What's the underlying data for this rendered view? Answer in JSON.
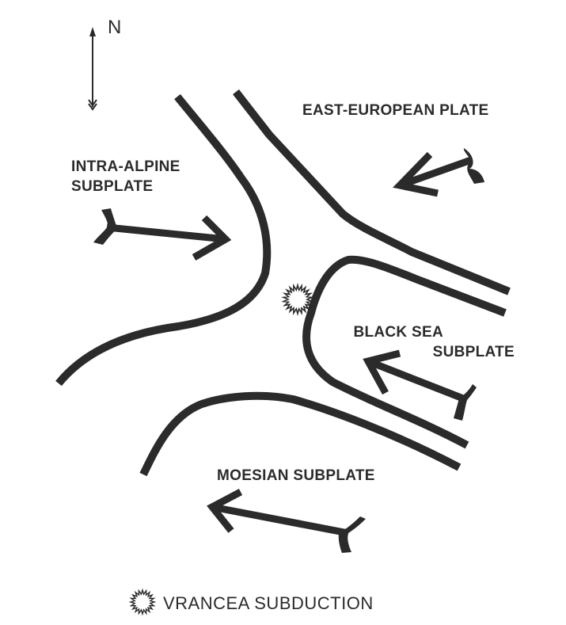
{
  "north": {
    "label": "N"
  },
  "plates": {
    "east_european": "EAST-EUROPEAN PLATE",
    "intra_alpine_line1": "INTRA-ALPINE",
    "intra_alpine_line2": "SUBPLATE",
    "black_sea_line1": "BLACK SEA",
    "black_sea_line2": "SUBPLATE",
    "moesian": "MOESIAN SUBPLATE"
  },
  "legend": {
    "label": "VRANCEA  SUBDUCTION",
    "symbol": "star-burst-icon"
  },
  "colors": {
    "ink": "#2b2b2b",
    "background": "#ffffff"
  }
}
